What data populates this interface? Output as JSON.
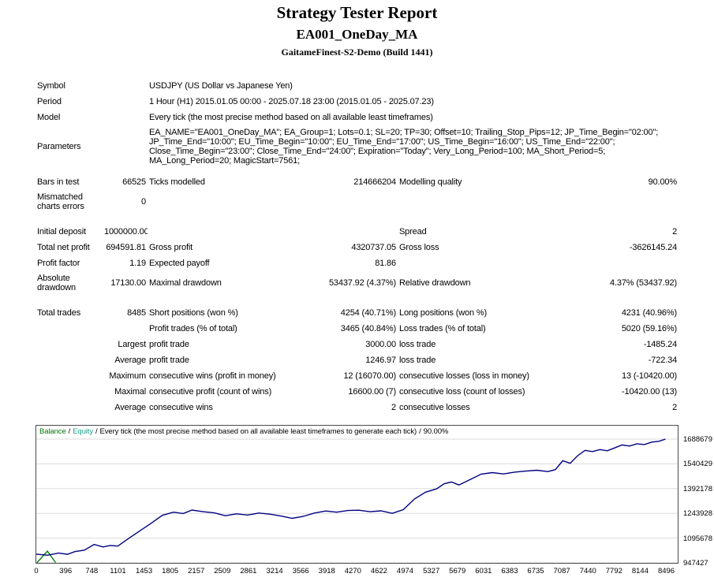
{
  "header": {
    "title": "Strategy Tester Report",
    "ea_name": "EA001_OneDay_MA",
    "server": "GaitameFinest-S2-Demo (Build 1441)"
  },
  "info": {
    "rows": [
      {
        "label": "Symbol",
        "value": "USDJPY (US Dollar vs Japanese Yen)"
      },
      {
        "label": "Period",
        "value": "1 Hour (H1) 2015.01.05 00:00 - 2025.07.18 23:00 (2015.01.05 - 2025.07.23)"
      },
      {
        "label": "Model",
        "value": "Every tick (the most precise method based on all available least timeframes)"
      },
      {
        "label": "Parameters",
        "value": "EA_NAME=\"EA001_OneDay_MA\"; EA_Group=1; Lots=0.1; SL=20; TP=30; Offset=10; Trailing_Stop_Pips=12; JP_Time_Begin=\"02:00\"; JP_Time_End=\"10:00\"; EU_Time_Begin=\"10:00\"; EU_Time_End=\"17:00\"; US_Time_Begin=\"16:00\"; US_Time_End=\"22:00\"; Close_Time_Begin=\"23:00\"; Close_Time_End=\"24:00\"; Expiration=\"Today\"; Very_Long_Period=100; MA_Short_Period=5; MA_Long_Period=20; MagicStart=7561;"
      }
    ]
  },
  "stats": {
    "rows": [
      {
        "c1": "Bars in test",
        "c2": "66525",
        "c3": "Ticks modelled",
        "c4": "214666204",
        "c5": "Modelling quality",
        "c6": "90.00%"
      },
      {
        "c1": "Mismatched charts errors",
        "c2": "0",
        "c3": "",
        "c4": "",
        "c5": "",
        "c6": ""
      },
      {
        "c1": "Initial deposit",
        "c2": "1000000.00",
        "c3": "",
        "c4": "",
        "c5": "Spread",
        "c6": "2"
      },
      {
        "c1": "Total net profit",
        "c2": "694591.81",
        "c3": "Gross profit",
        "c4": "4320737.05",
        "c5": "Gross loss",
        "c6": "-3626145.24"
      },
      {
        "c1": "Profit factor",
        "c2": "1.19",
        "c3": "Expected payoff",
        "c4": "81.86",
        "c5": "",
        "c6": ""
      },
      {
        "c1": "Absolute drawdown",
        "c2": "17130.00",
        "c3": "Maximal drawdown",
        "c4": "53437.92 (4.37%)",
        "c5": "Relative drawdown",
        "c6": "4.37% (53437.92)"
      },
      {
        "c1": "Total trades",
        "c2": "8485",
        "c3": "Short positions (won %)",
        "c4": "4254 (40.71%)",
        "c5": "Long positions (won %)",
        "c6": "4231 (40.96%)"
      },
      {
        "c1": "",
        "c2": "",
        "c3": "Profit trades (% of total)",
        "c4": "3465 (40.84%)",
        "c5": "Loss trades (% of total)",
        "c6": "5020 (59.16%)"
      },
      {
        "c1": "",
        "c2": "Largest",
        "c3": "profit trade",
        "c4": "3000.00",
        "c5": "loss trade",
        "c6": "-1485.24"
      },
      {
        "c1": "",
        "c2": "Average",
        "c3": "profit trade",
        "c4": "1246.97",
        "c5": "loss trade",
        "c6": "-722.34"
      },
      {
        "c1": "",
        "c2": "Maximum",
        "c3": "consecutive wins (profit in money)",
        "c4": "12 (16070.00)",
        "c5": "consecutive losses (loss in money)",
        "c6": "13 (-10420.00)"
      },
      {
        "c1": "",
        "c2": "Maximal",
        "c3": "consecutive profit (count of wins)",
        "c4": "16600.00 (7)",
        "c5": "consecutive loss (count of losses)",
        "c6": "-10420.00 (13)"
      },
      {
        "c1": "",
        "c2": "Average",
        "c3": "consecutive wins",
        "c4": "2",
        "c5": "consecutive losses",
        "c6": "2"
      }
    ]
  },
  "chart_data": {
    "type": "line",
    "title": "",
    "legend": {
      "balance_label": "Balance",
      "equity_label": "Equity",
      "separator": "/",
      "description": "Every tick (the most precise method based on all available least timeframes to generate each tick)",
      "quality": "90.00%",
      "balance_color": "#007500",
      "equity_color": "#1FA38D"
    },
    "line_color": "#000080",
    "volume_color": "#008000",
    "grid_color": "#DBDBDB",
    "legend_position": "top-left",
    "grid": true,
    "xlim": [
      0,
      8650
    ],
    "ylim": [
      947427,
      1769000
    ],
    "y_ticks": [
      1688679,
      1540429,
      1392178,
      1243928,
      1095678,
      947427
    ],
    "x_ticks": [
      0,
      396,
      748,
      1101,
      1453,
      1805,
      2157,
      2509,
      2861,
      3214,
      3566,
      3918,
      4270,
      4622,
      4974,
      5327,
      5679,
      6031,
      6383,
      6735,
      7087,
      7440,
      7792,
      8144,
      8496
    ],
    "balance_series": {
      "name": "Balance",
      "x": [
        0,
        150,
        300,
        420,
        520,
        650,
        780,
        900,
        1000,
        1100,
        1250,
        1400,
        1550,
        1700,
        1850,
        1980,
        2100,
        2250,
        2400,
        2550,
        2700,
        2850,
        3000,
        3150,
        3300,
        3450,
        3600,
        3750,
        3900,
        4050,
        4200,
        4350,
        4500,
        4650,
        4800,
        4950,
        5100,
        5250,
        5400,
        5500,
        5600,
        5700,
        5850,
        6000,
        6150,
        6300,
        6450,
        6600,
        6750,
        6900,
        7000,
        7100,
        7200,
        7300,
        7400,
        7500,
        7600,
        7700,
        7800,
        7900,
        8000,
        8100,
        8200,
        8300,
        8400,
        8485
      ],
      "y": [
        1000000,
        993000,
        1006000,
        999000,
        1015000,
        1024000,
        1058000,
        1043000,
        1052000,
        1048000,
        1095000,
        1140000,
        1185000,
        1232000,
        1251000,
        1243000,
        1264000,
        1254000,
        1247000,
        1230000,
        1241000,
        1234000,
        1246000,
        1239000,
        1228000,
        1214000,
        1226000,
        1246000,
        1258000,
        1251000,
        1261000,
        1263000,
        1254000,
        1259000,
        1244000,
        1266000,
        1330000,
        1371000,
        1391000,
        1421000,
        1432000,
        1414000,
        1446000,
        1479000,
        1488000,
        1480000,
        1491000,
        1497000,
        1502000,
        1494000,
        1506000,
        1559000,
        1544000,
        1589000,
        1621000,
        1614000,
        1626000,
        1619000,
        1636000,
        1654000,
        1647000,
        1661000,
        1656000,
        1671000,
        1676000,
        1688679
      ]
    },
    "volume_series": {
      "name": "Lots",
      "x": [
        10,
        150,
        260
      ],
      "y": [
        949000,
        1018000,
        950000
      ]
    }
  }
}
